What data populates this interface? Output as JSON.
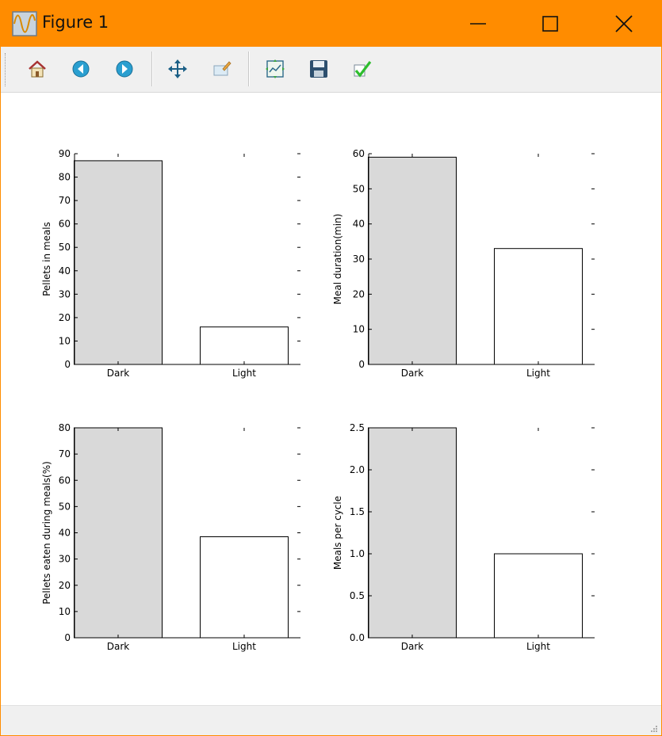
{
  "window": {
    "title": "Figure 1",
    "titlebar_color": "#ff8c00",
    "app_icon": "figure-wave-icon",
    "controls": [
      "minimize-icon",
      "maximize-icon",
      "close-icon"
    ]
  },
  "toolbar": {
    "buttons": [
      {
        "name": "home",
        "icon": "home-icon"
      },
      {
        "name": "back",
        "icon": "arrow-left-icon"
      },
      {
        "name": "forward",
        "icon": "arrow-right-icon"
      },
      {
        "name": "pan",
        "icon": "move-icon"
      },
      {
        "name": "zoom",
        "icon": "zoom-rect-icon"
      },
      {
        "name": "subplots",
        "icon": "subplots-icon"
      },
      {
        "name": "save",
        "icon": "floppy-icon"
      },
      {
        "name": "edit",
        "icon": "checkmark-icon"
      }
    ]
  },
  "chart_data": [
    {
      "type": "bar",
      "categories": [
        "Dark",
        "Light"
      ],
      "values": [
        87,
        16
      ],
      "colors": [
        "#d9d9d9",
        "#ffffff"
      ],
      "ylabel": "Pellets in meals",
      "ylim": [
        0,
        90
      ],
      "yticks": [
        0,
        10,
        20,
        30,
        40,
        50,
        60,
        70,
        80,
        90
      ],
      "ytick_labels": [
        "0",
        "10",
        "20",
        "30",
        "40",
        "50",
        "60",
        "70",
        "80",
        "90"
      ]
    },
    {
      "type": "bar",
      "categories": [
        "Dark",
        "Light"
      ],
      "values": [
        59,
        33
      ],
      "colors": [
        "#d9d9d9",
        "#ffffff"
      ],
      "ylabel": "Meal duration(min)",
      "ylim": [
        0,
        60
      ],
      "yticks": [
        0,
        10,
        20,
        30,
        40,
        50,
        60
      ],
      "ytick_labels": [
        "0",
        "10",
        "20",
        "30",
        "40",
        "50",
        "60"
      ]
    },
    {
      "type": "bar",
      "categories": [
        "Dark",
        "Light"
      ],
      "values": [
        80,
        38.5
      ],
      "colors": [
        "#d9d9d9",
        "#ffffff"
      ],
      "ylabel": "Pellets eaten during meals(%)",
      "ylim": [
        0,
        80
      ],
      "yticks": [
        0,
        10,
        20,
        30,
        40,
        50,
        60,
        70,
        80
      ],
      "ytick_labels": [
        "0",
        "10",
        "20",
        "30",
        "40",
        "50",
        "60",
        "70",
        "80"
      ]
    },
    {
      "type": "bar",
      "categories": [
        "Dark",
        "Light"
      ],
      "values": [
        2.5,
        1.0
      ],
      "colors": [
        "#d9d9d9",
        "#ffffff"
      ],
      "ylabel": "Meals per cycle",
      "ylim": [
        0,
        2.5
      ],
      "yticks": [
        0,
        0.5,
        1.0,
        1.5,
        2.0,
        2.5
      ],
      "ytick_labels": [
        "0.0",
        "0.5",
        "1.0",
        "1.5",
        "2.0",
        "2.5"
      ]
    }
  ]
}
